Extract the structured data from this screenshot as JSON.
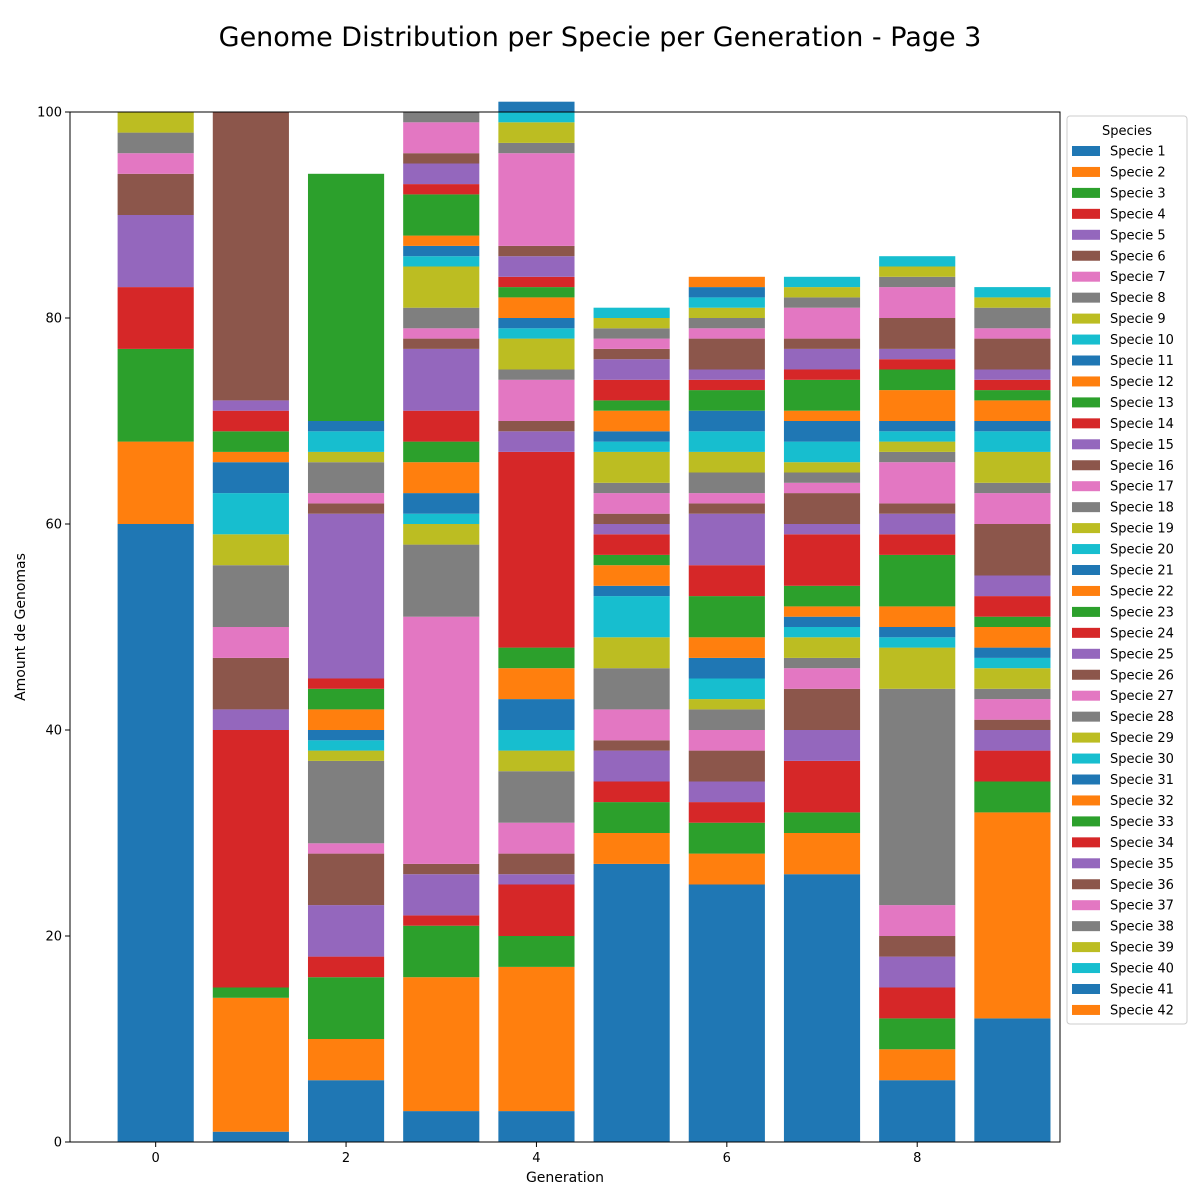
{
  "chart_data": {
    "type": "bar",
    "stacked": true,
    "title": "Genome Distribution per Specie per Generation - Page 3",
    "xlabel": "Generation",
    "ylabel": "Amount de Genomas",
    "ylim": [
      0,
      100
    ],
    "xlim": [
      -0.9,
      9.5
    ],
    "x": [
      0,
      1,
      2,
      3,
      4,
      5,
      6,
      7,
      8,
      9
    ],
    "xticks": [
      0,
      2,
      4,
      6,
      8
    ],
    "yticks": [
      0,
      20,
      40,
      60,
      80,
      100
    ],
    "grid": false,
    "legend": {
      "title": "Species",
      "placement": "right"
    },
    "series_colors": [
      "#1f77b4",
      "#ff7f0e",
      "#2ca02c",
      "#d62728",
      "#9467bd",
      "#8c564b",
      "#e377c2",
      "#7f7f7f",
      "#bcbd22",
      "#17becf"
    ],
    "series": [
      {
        "name": "Specie 1",
        "values": [
          60,
          1,
          6,
          3,
          3,
          27,
          25,
          26,
          6,
          12
        ]
      },
      {
        "name": "Specie 2",
        "values": [
          8,
          13,
          4,
          13,
          14,
          3,
          3,
          4,
          3,
          20
        ]
      },
      {
        "name": "Specie 3",
        "values": [
          9,
          1,
          6,
          5,
          3,
          3,
          3,
          2,
          3,
          3
        ]
      },
      {
        "name": "Specie 4",
        "values": [
          6,
          25,
          2,
          1,
          5,
          2,
          2,
          5,
          3,
          3
        ]
      },
      {
        "name": "Specie 5",
        "values": [
          7,
          2,
          5,
          4,
          1,
          3,
          2,
          3,
          3,
          2
        ]
      },
      {
        "name": "Specie 6",
        "values": [
          4,
          5,
          5,
          1,
          2,
          1,
          3,
          4,
          2,
          1
        ]
      },
      {
        "name": "Specie 7",
        "values": [
          2,
          3,
          1,
          24,
          3,
          3,
          2,
          2,
          3,
          2
        ]
      },
      {
        "name": "Specie 8",
        "values": [
          2,
          6,
          8,
          7,
          5,
          4,
          2,
          1,
          21,
          1
        ]
      },
      {
        "name": "Specie 9",
        "values": [
          2,
          3,
          1,
          2,
          2,
          3,
          1,
          2,
          4,
          2
        ]
      },
      {
        "name": "Specie 10",
        "values": [
          0,
          4,
          1,
          1,
          2,
          4,
          2,
          1,
          1,
          1
        ]
      },
      {
        "name": "Specie 11",
        "values": [
          0,
          3,
          1,
          2,
          3,
          1,
          2,
          1,
          1,
          1
        ]
      },
      {
        "name": "Specie 12",
        "values": [
          0,
          1,
          2,
          3,
          3,
          2,
          2,
          1,
          2,
          2
        ]
      },
      {
        "name": "Specie 13",
        "values": [
          0,
          2,
          2,
          2,
          2,
          1,
          4,
          2,
          5,
          1
        ]
      },
      {
        "name": "Specie 14",
        "values": [
          0,
          2,
          1,
          3,
          19,
          2,
          3,
          5,
          2,
          2
        ]
      },
      {
        "name": "Specie 15",
        "values": [
          0,
          1,
          16,
          6,
          2,
          1,
          5,
          1,
          2,
          2
        ]
      },
      {
        "name": "Specie 16",
        "values": [
          0,
          28,
          1,
          1,
          1,
          1,
          1,
          3,
          1,
          5
        ]
      },
      {
        "name": "Specie 17",
        "values": [
          0,
          0,
          1,
          1,
          4,
          2,
          1,
          1,
          4,
          3
        ]
      },
      {
        "name": "Specie 18",
        "values": [
          0,
          0,
          3,
          2,
          1,
          1,
          2,
          1,
          1,
          1
        ]
      },
      {
        "name": "Specie 19",
        "values": [
          0,
          0,
          1,
          4,
          3,
          3,
          2,
          1,
          1,
          3
        ]
      },
      {
        "name": "Specie 20",
        "values": [
          0,
          0,
          2,
          1,
          1,
          1,
          2,
          2,
          1,
          2
        ]
      },
      {
        "name": "Specie 21",
        "values": [
          0,
          0,
          1,
          1,
          1,
          1,
          2,
          2,
          1,
          1
        ]
      },
      {
        "name": "Specie 22",
        "values": [
          0,
          0,
          0,
          1,
          2,
          2,
          0,
          1,
          3,
          2
        ]
      },
      {
        "name": "Specie 23",
        "values": [
          0,
          0,
          24,
          4,
          1,
          1,
          2,
          3,
          2,
          1
        ]
      },
      {
        "name": "Specie 24",
        "values": [
          0,
          0,
          0,
          1,
          1,
          2,
          1,
          1,
          1,
          1
        ]
      },
      {
        "name": "Specie 25",
        "values": [
          0,
          0,
          0,
          2,
          2,
          2,
          1,
          2,
          1,
          1
        ]
      },
      {
        "name": "Specie 26",
        "values": [
          0,
          0,
          0,
          1,
          1,
          1,
          3,
          1,
          3,
          3
        ]
      },
      {
        "name": "Specie 27",
        "values": [
          0,
          0,
          0,
          3,
          9,
          1,
          1,
          3,
          3,
          1
        ]
      },
      {
        "name": "Specie 28",
        "values": [
          0,
          0,
          0,
          1,
          1,
          1,
          1,
          1,
          1,
          2
        ]
      },
      {
        "name": "Specie 29",
        "values": [
          0,
          0,
          0,
          0,
          2,
          1,
          1,
          1,
          1,
          1
        ]
      },
      {
        "name": "Specie 30",
        "values": [
          0,
          0,
          0,
          0,
          1,
          1,
          1,
          1,
          1,
          1
        ]
      },
      {
        "name": "Specie 31",
        "values": [
          0,
          0,
          0,
          0,
          1,
          0,
          1,
          0,
          0,
          0
        ]
      },
      {
        "name": "Specie 32",
        "values": [
          0,
          0,
          0,
          0,
          0,
          0,
          1,
          0,
          0,
          0
        ]
      },
      {
        "name": "Specie 33",
        "values": [
          0,
          0,
          0,
          0,
          0,
          0,
          0,
          0,
          0,
          0
        ]
      },
      {
        "name": "Specie 34",
        "values": [
          0,
          0,
          0,
          0,
          0,
          0,
          0,
          0,
          0,
          0
        ]
      },
      {
        "name": "Specie 35",
        "values": [
          0,
          0,
          0,
          0,
          0,
          0,
          0,
          0,
          0,
          0
        ]
      },
      {
        "name": "Specie 36",
        "values": [
          0,
          0,
          0,
          0,
          0,
          0,
          0,
          0,
          0,
          0
        ]
      },
      {
        "name": "Specie 37",
        "values": [
          0,
          0,
          0,
          0,
          0,
          0,
          0,
          0,
          0,
          0
        ]
      },
      {
        "name": "Specie 38",
        "values": [
          0,
          0,
          0,
          0,
          0,
          0,
          0,
          0,
          0,
          0
        ]
      },
      {
        "name": "Specie 39",
        "values": [
          0,
          0,
          0,
          0,
          0,
          0,
          0,
          0,
          0,
          0
        ]
      },
      {
        "name": "Specie 40",
        "values": [
          0,
          0,
          0,
          0,
          0,
          0,
          0,
          0,
          0,
          0
        ]
      },
      {
        "name": "Specie 41",
        "values": [
          0,
          0,
          0,
          0,
          0,
          0,
          0,
          0,
          0,
          0
        ]
      },
      {
        "name": "Specie 42",
        "values": [
          0,
          0,
          0,
          0,
          0,
          0,
          0,
          0,
          0,
          0
        ]
      }
    ]
  }
}
